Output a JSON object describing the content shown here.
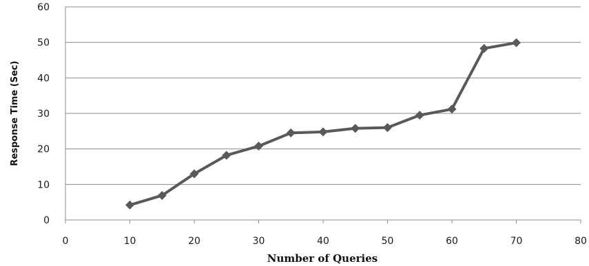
{
  "chart_data": {
    "type": "line",
    "title": "",
    "xlabel": "Number of Queries",
    "ylabel": "Response Time (Sec)",
    "xlim": [
      0,
      80
    ],
    "ylim": [
      0,
      60
    ],
    "xticks": [
      0,
      10,
      20,
      30,
      40,
      50,
      60,
      70,
      80
    ],
    "yticks": [
      0,
      10,
      20,
      30,
      40,
      50,
      60
    ],
    "grid": "horizontal",
    "legend": "none",
    "marker": "diamond",
    "line_color": "#595959",
    "grid_color": "#8c8c8c",
    "series": [
      {
        "x": [
          10,
          15,
          20,
          25,
          30,
          35,
          40,
          45,
          50,
          55,
          60,
          65,
          70
        ],
        "y": [
          4.2,
          6.9,
          13.0,
          18.2,
          20.8,
          24.5,
          24.8,
          25.8,
          26.0,
          29.5,
          31.2,
          48.3,
          49.9
        ]
      }
    ]
  }
}
